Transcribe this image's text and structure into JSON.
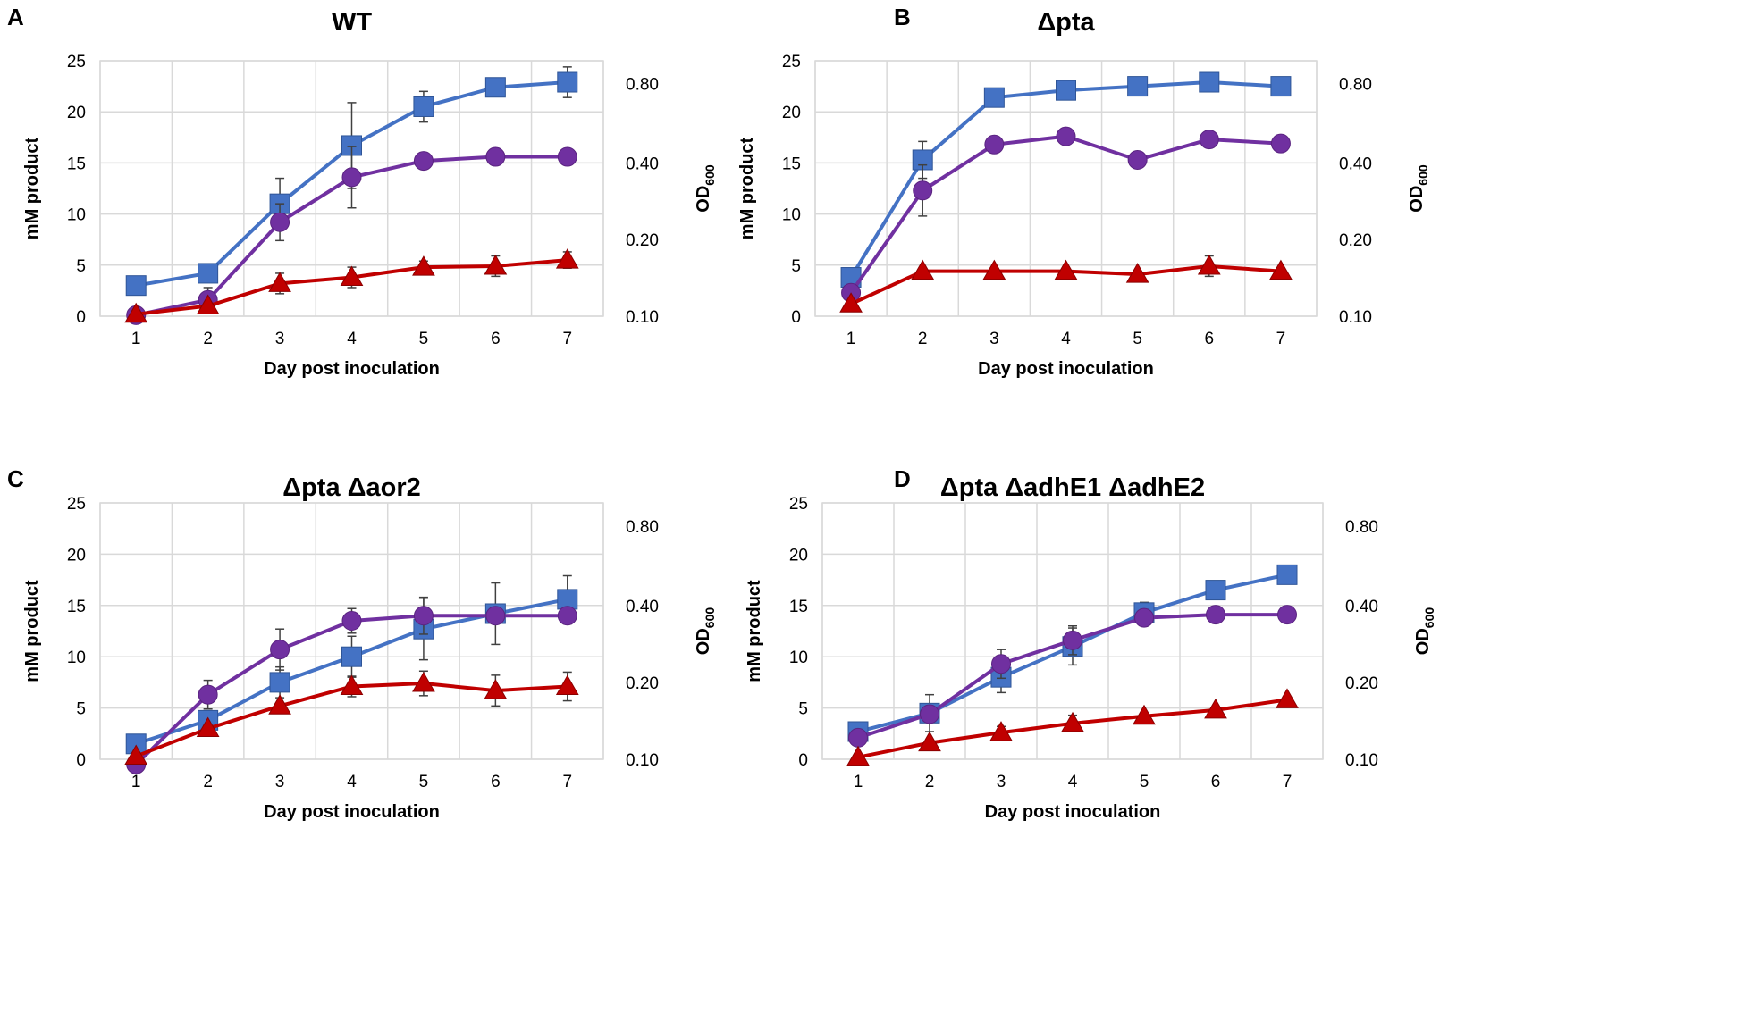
{
  "chart_data": [
    {
      "panel": "A",
      "type": "line",
      "title": "WT",
      "xlabel": "Day post inoculation",
      "ylabel": "mM product",
      "y2label": "OD",
      "y2label_sub": "600",
      "x": [
        1,
        2,
        3,
        4,
        5,
        6,
        7
      ],
      "xticks": [
        "1",
        "2",
        "3",
        "4",
        "5",
        "6",
        "7"
      ],
      "ylim": [
        0,
        25
      ],
      "yticks": [
        "0",
        "5",
        "10",
        "15",
        "20",
        "25"
      ],
      "y2ticks": [
        "0.10",
        "0.20",
        "0.40",
        "0.80"
      ],
      "grid": true,
      "series": [
        {
          "name": "blue-squares",
          "marker": "square",
          "color": "#4472C4",
          "values": [
            3.0,
            4.2,
            11.0,
            16.7,
            20.5,
            22.4,
            22.9
          ],
          "errors": [
            0,
            0,
            2.5,
            4.2,
            1.5,
            0,
            1.5
          ]
        },
        {
          "name": "purple-circles",
          "marker": "circle",
          "color": "#7030A0",
          "values": [
            0.1,
            1.6,
            9.2,
            13.6,
            15.2,
            15.6,
            15.6
          ],
          "errors": [
            0,
            1.2,
            1.8,
            3.0,
            0,
            0,
            0
          ]
        },
        {
          "name": "red-triangles",
          "marker": "triangle",
          "color": "#C00000",
          "values": [
            0.2,
            1.0,
            3.2,
            3.8,
            4.8,
            4.9,
            5.5
          ],
          "errors": [
            0,
            0,
            1.0,
            1.0,
            0.6,
            1.0,
            0.8
          ]
        }
      ]
    },
    {
      "panel": "B",
      "type": "line",
      "title": "Δpta",
      "xlabel": "Day post inoculation",
      "ylabel": "mM product",
      "y2label": "OD",
      "y2label_sub": "600",
      "x": [
        1,
        2,
        3,
        4,
        5,
        6,
        7
      ],
      "xticks": [
        "1",
        "2",
        "3",
        "4",
        "5",
        "6",
        "7"
      ],
      "ylim": [
        0,
        25
      ],
      "yticks": [
        "0",
        "5",
        "10",
        "15",
        "20",
        "25"
      ],
      "y2ticks": [
        "0.10",
        "0.20",
        "0.40",
        "0.80"
      ],
      "grid": true,
      "series": [
        {
          "name": "blue-squares",
          "marker": "square",
          "color": "#4472C4",
          "values": [
            3.8,
            15.3,
            21.4,
            22.1,
            22.5,
            22.9,
            22.5
          ],
          "errors": [
            0,
            1.8,
            0,
            0,
            0,
            0.6,
            0.8
          ]
        },
        {
          "name": "purple-circles",
          "marker": "circle",
          "color": "#7030A0",
          "values": [
            2.3,
            12.3,
            16.8,
            17.6,
            15.3,
            17.3,
            16.9
          ],
          "errors": [
            0,
            2.5,
            0,
            0,
            0,
            0,
            0
          ]
        },
        {
          "name": "red-triangles",
          "marker": "triangle",
          "color": "#C00000",
          "values": [
            1.2,
            4.4,
            4.4,
            4.4,
            4.1,
            4.9,
            4.4
          ],
          "errors": [
            0,
            0,
            0,
            0,
            0,
            1.0,
            0
          ]
        }
      ]
    },
    {
      "panel": "C",
      "type": "line",
      "title": "Δpta Δaor2",
      "xlabel": "Day post inoculation",
      "ylabel": "mM product",
      "y2label": "OD",
      "y2label_sub": "600",
      "x": [
        1,
        2,
        3,
        4,
        5,
        6,
        7
      ],
      "xticks": [
        "1",
        "2",
        "3",
        "4",
        "5",
        "6",
        "7"
      ],
      "ylim": [
        0,
        25
      ],
      "yticks": [
        "0",
        "5",
        "10",
        "15",
        "20",
        "25"
      ],
      "y2ticks": [
        "0.10",
        "0.20",
        "0.40",
        "0.80"
      ],
      "grid": true,
      "series": [
        {
          "name": "blue-squares",
          "marker": "square",
          "color": "#4472C4",
          "values": [
            1.5,
            3.8,
            7.5,
            10.0,
            12.7,
            14.2,
            15.6
          ],
          "errors": [
            0,
            0,
            1.5,
            2.0,
            3.0,
            3.0,
            2.3
          ]
        },
        {
          "name": "purple-circles",
          "marker": "circle",
          "color": "#7030A0",
          "values": [
            -0.5,
            6.3,
            10.7,
            13.5,
            14.0,
            14.0,
            14.0
          ],
          "errors": [
            0,
            1.4,
            2.0,
            1.2,
            1.8,
            0,
            0.8
          ]
        },
        {
          "name": "red-triangles",
          "marker": "triangle",
          "color": "#C00000",
          "values": [
            0.3,
            3.0,
            5.2,
            7.1,
            7.4,
            6.7,
            7.1
          ],
          "errors": [
            0,
            0,
            0,
            1.0,
            1.2,
            1.5,
            1.4
          ]
        }
      ]
    },
    {
      "panel": "D",
      "type": "line",
      "title": "Δpta ΔadhE1 ΔadhE2",
      "xlabel": "Day post inoculation",
      "ylabel": "mM product",
      "y2label": "OD",
      "y2label_sub": "600",
      "x": [
        1,
        2,
        3,
        4,
        5,
        6,
        7
      ],
      "xticks": [
        "1",
        "2",
        "3",
        "4",
        "5",
        "6",
        "7"
      ],
      "ylim": [
        0,
        25
      ],
      "yticks": [
        "0",
        "5",
        "10",
        "15",
        "20",
        "25"
      ],
      "y2ticks": [
        "0.10",
        "0.20",
        "0.40",
        "0.80"
      ],
      "grid": true,
      "series": [
        {
          "name": "blue-squares",
          "marker": "square",
          "color": "#4472C4",
          "values": [
            2.7,
            4.5,
            8.0,
            11.0,
            14.3,
            16.5,
            18.0
          ],
          "errors": [
            0,
            1.8,
            1.5,
            1.8,
            1.0,
            0,
            0
          ]
        },
        {
          "name": "purple-circles",
          "marker": "circle",
          "color": "#7030A0",
          "values": [
            2.1,
            4.4,
            9.3,
            11.6,
            13.8,
            14.1,
            14.1
          ],
          "errors": [
            0,
            0,
            1.4,
            1.4,
            0.8,
            0,
            0
          ]
        },
        {
          "name": "red-triangles",
          "marker": "triangle",
          "color": "#C00000",
          "values": [
            0.2,
            1.6,
            2.6,
            3.5,
            4.2,
            4.8,
            5.8
          ],
          "errors": [
            0,
            0,
            0.6,
            0.8,
            0,
            0,
            0
          ]
        }
      ]
    }
  ]
}
